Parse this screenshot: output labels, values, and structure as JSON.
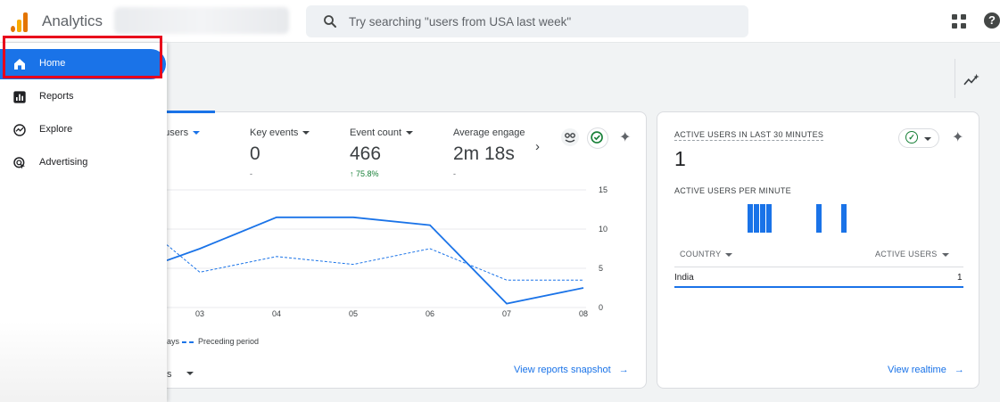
{
  "app": {
    "title": "Analytics"
  },
  "search": {
    "placeholder": "Try searching \"users from USA last week\""
  },
  "topbar": {
    "apps_icon": "apps-grid-icon",
    "help_icon": "help-icon",
    "help_glyph": "?"
  },
  "colors": {
    "accent": "#1a73e8",
    "highlight": "#e8001c",
    "positive": "#188038",
    "logo_orange": "#e37400",
    "logo_yellow": "#f9ab00"
  },
  "sidebar": {
    "items": [
      {
        "label": "Home",
        "icon": "home-icon",
        "active": true
      },
      {
        "label": "Reports",
        "icon": "reports-icon",
        "active": false
      },
      {
        "label": "Explore",
        "icon": "explore-icon",
        "active": false
      },
      {
        "label": "Advertising",
        "icon": "advertising-icon",
        "active": false
      }
    ]
  },
  "overview": {
    "metrics": [
      {
        "label": "e users",
        "value": "",
        "delta": "%"
      },
      {
        "label": "Key events",
        "value": "0",
        "delta": "-"
      },
      {
        "label": "Event count",
        "value": "466",
        "delta": "↑ 75.8%"
      },
      {
        "label": "Average engage",
        "value": "2m 18s",
        "delta": "-"
      }
    ],
    "legend": {
      "current_partial": "ays",
      "previous": "Preceding period"
    },
    "footer_partial": "s",
    "link": "View reports snapshot",
    "link_arrow": "→",
    "next_glyph": "›",
    "sparkle_glyph": "✦"
  },
  "chart_data": {
    "type": "line",
    "x": [
      "03",
      "04",
      "05",
      "06",
      "07",
      "08"
    ],
    "y_ticks": [
      "15",
      "10",
      "5",
      "0"
    ],
    "ylim": [
      0,
      15
    ],
    "series": [
      {
        "values": [
          7.5,
          11.5,
          11.5,
          10.5,
          0.5,
          2.5
        ],
        "style": "solid",
        "color": "#1a73e8"
      },
      {
        "name": "Preceding period",
        "values": [
          4.5,
          6.5,
          5.5,
          7.5,
          3.5,
          3.5
        ],
        "style": "dashed",
        "color": "#1a73e8"
      }
    ],
    "left_partial": {
      "solid_start": 6,
      "dashed_start": 8
    },
    "grid": true
  },
  "realtime": {
    "title": "ACTIVE USERS IN LAST 30 MINUTES",
    "value": "1",
    "subtitle": "ACTIVE USERS PER MINUTE",
    "bars": [
      1,
      1,
      1,
      1,
      0,
      0,
      0,
      0,
      0,
      0,
      0,
      1,
      0,
      0,
      0,
      1
    ],
    "col_country": "COUNTRY",
    "col_users": "ACTIVE USERS",
    "rows": [
      {
        "country": "India",
        "users": "1"
      }
    ],
    "link": "View realtime",
    "link_arrow": "→",
    "check_glyph": "✓",
    "sparkle_glyph": "✦"
  }
}
